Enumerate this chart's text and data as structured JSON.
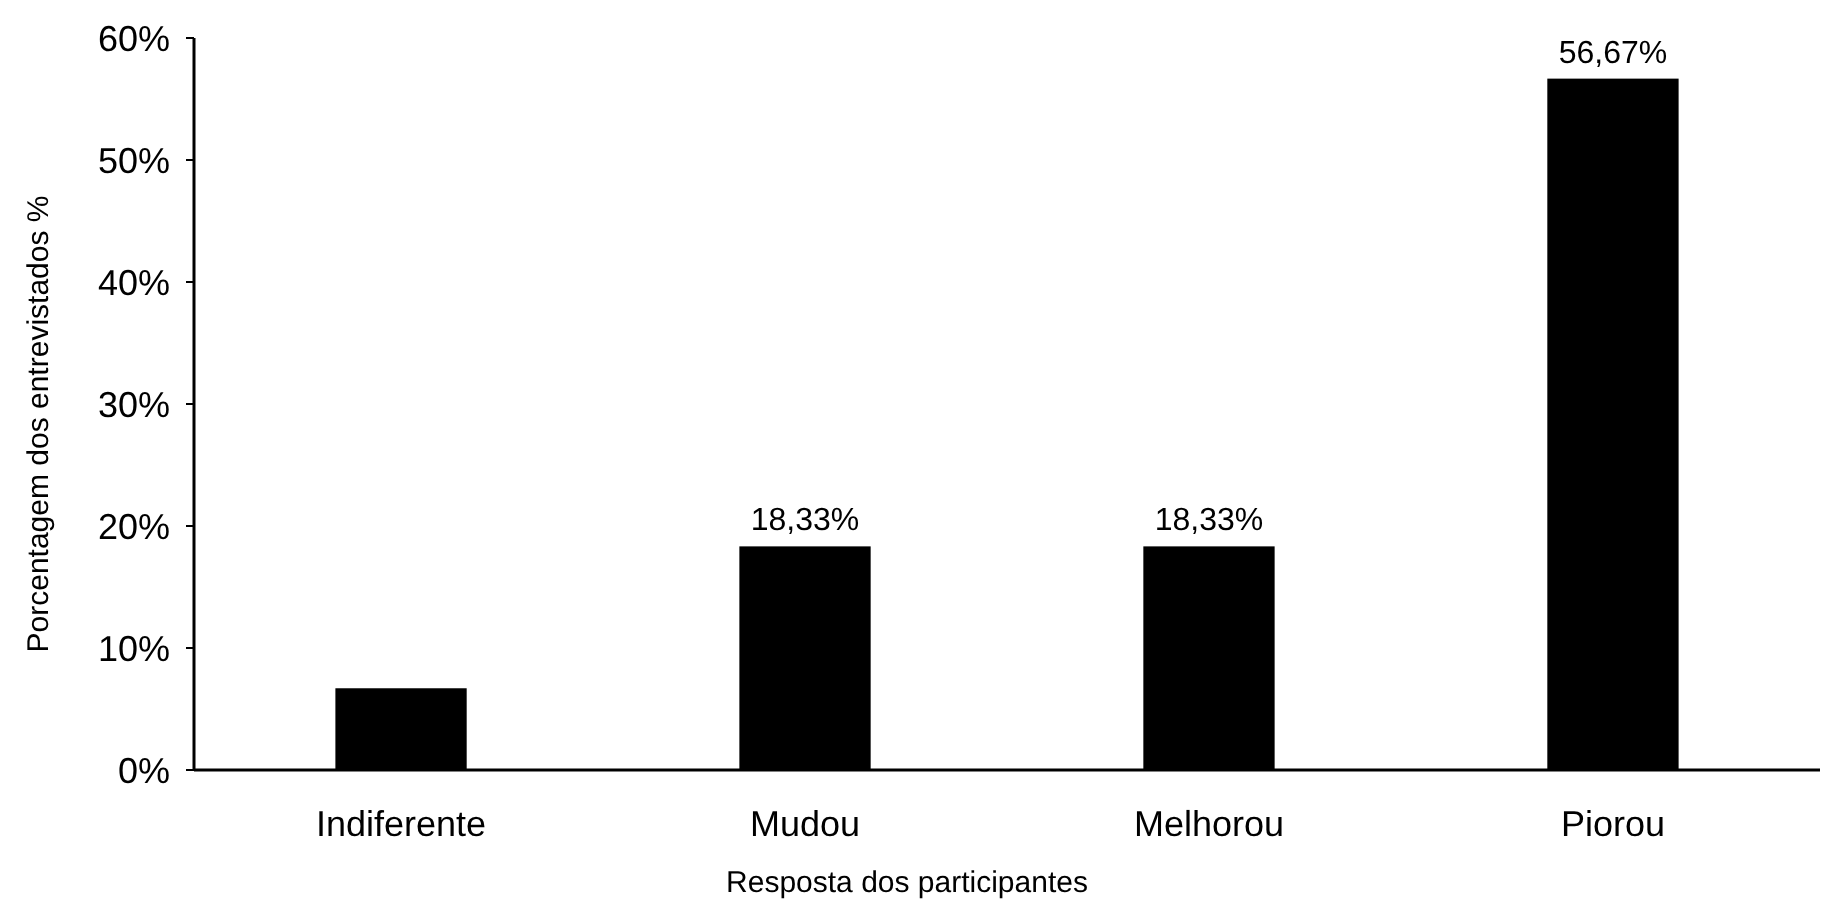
{
  "chart_data": {
    "type": "bar",
    "xlabel": "Resposta dos participantes",
    "ylabel": "Porcentagem dos entrevistados %",
    "categories": [
      "Indiferente",
      "Mudou",
      "Melhorou",
      "Piorou"
    ],
    "values": [
      6.7,
      18.33,
      18.33,
      56.67
    ],
    "color": "#000000",
    "value_labels": [
      null,
      "18,33%",
      "18,33%",
      "56,67%"
    ],
    "ylim": [
      0,
      60
    ],
    "yticks": [
      {
        "value": 0,
        "label": "0%"
      },
      {
        "value": 10,
        "label": "10%"
      },
      {
        "value": 20,
        "label": "20%"
      },
      {
        "value": 30,
        "label": "30%"
      },
      {
        "value": 40,
        "label": "40%"
      },
      {
        "value": 50,
        "label": "50%"
      },
      {
        "value": 60,
        "label": "60%"
      }
    ],
    "grid": false
  }
}
